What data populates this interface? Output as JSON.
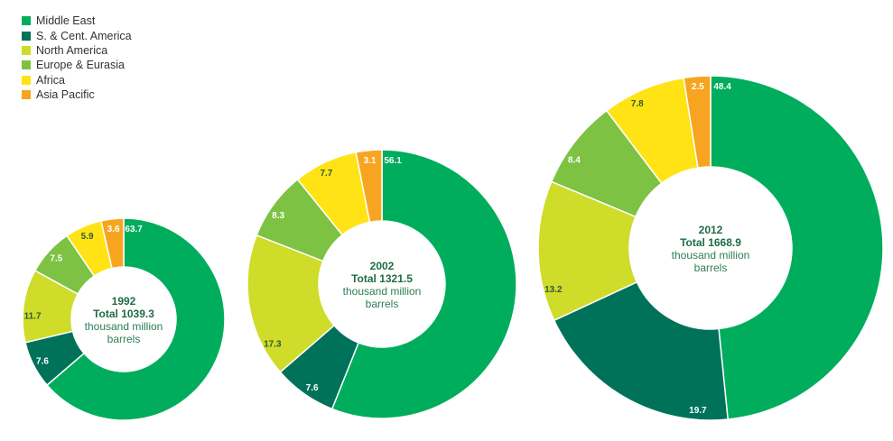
{
  "legend": [
    {
      "name": "Middle East",
      "color": "#00ad5c"
    },
    {
      "name": "S. & Cent. America",
      "color": "#00725a"
    },
    {
      "name": "North America",
      "color": "#cfdc29"
    },
    {
      "name": "Europe & Eurasia",
      "color": "#7dc242"
    },
    {
      "name": "Africa",
      "color": "#ffe314"
    },
    {
      "name": "Asia Pacific",
      "color": "#f7a520"
    }
  ],
  "chart_data": [
    {
      "type": "pie",
      "year": "1992",
      "total_label": "Total 1039.3",
      "unit_line1": "thousand million",
      "unit_line2": "barrels",
      "categories": [
        "Middle East",
        "S. & Cent. America",
        "North America",
        "Europe & Eurasia",
        "Africa",
        "Asia Pacific"
      ],
      "values": [
        63.7,
        7.6,
        11.7,
        7.5,
        5.9,
        3.6
      ],
      "labels": [
        "63.7",
        "7.6",
        "11.7",
        "7.5",
        "5.9",
        "3.6"
      ]
    },
    {
      "type": "pie",
      "year": "2002",
      "total_label": "Total 1321.5",
      "unit_line1": "thousand million",
      "unit_line2": "barrels",
      "categories": [
        "Middle East",
        "S. & Cent. America",
        "North America",
        "Europe & Eurasia",
        "Africa",
        "Asia Pacific"
      ],
      "values": [
        56.1,
        7.6,
        17.3,
        8.3,
        7.7,
        3.1
      ],
      "labels": [
        "56.1",
        "7.6",
        "17.3",
        "8.3",
        "7.7",
        "3.1"
      ]
    },
    {
      "type": "pie",
      "year": "2012",
      "total_label": "Total 1668.9",
      "unit_line1": "thousand million",
      "unit_line2": "barrels",
      "categories": [
        "Middle East",
        "S. & Cent. America",
        "North America",
        "Europe & Eurasia",
        "Africa",
        "Asia Pacific"
      ],
      "values": [
        48.4,
        19.7,
        13.2,
        8.4,
        7.8,
        2.5
      ],
      "labels": [
        "48.4",
        "19.7",
        "13.2",
        "8.4",
        "7.8",
        "2.5"
      ]
    }
  ]
}
